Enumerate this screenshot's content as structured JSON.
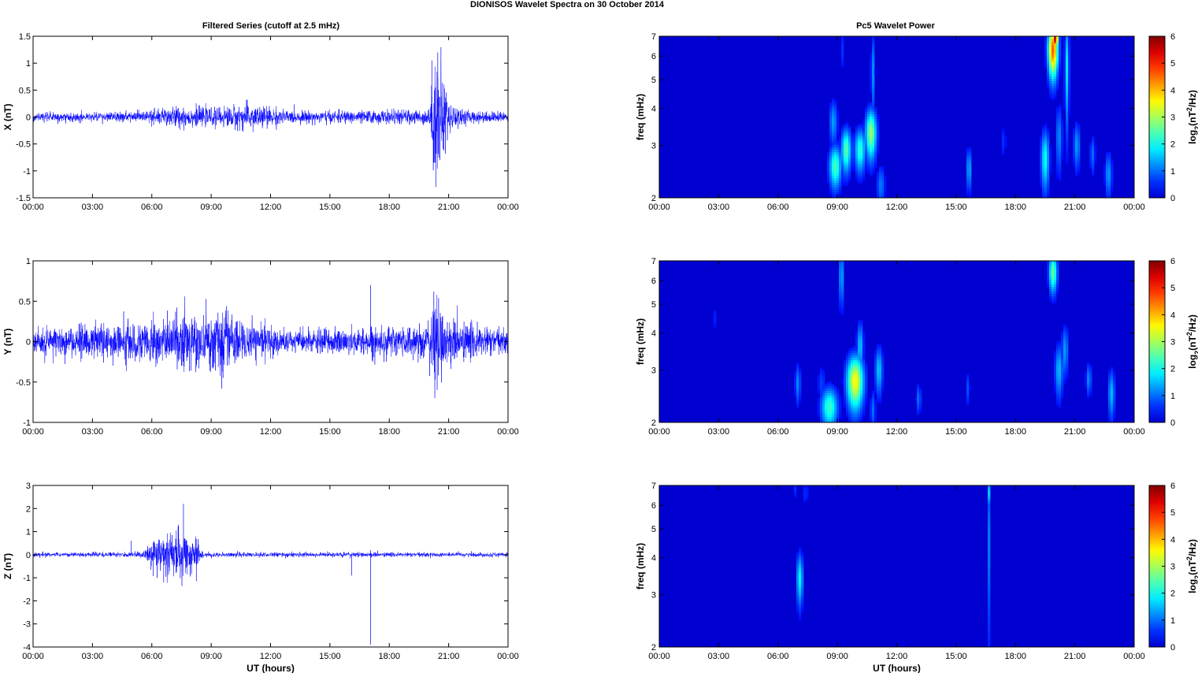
{
  "figure_title": "DIONISOS Wavelet Spectra on 30 October   2014",
  "left_title": "Filtered Series (cutoff at 2.5 mHz)",
  "right_title": "Pc5 Wavelet Power",
  "chart_data": [
    {
      "type": "line",
      "ylabel": "X (nT)",
      "xlabel": "",
      "xlim": [
        0,
        24
      ],
      "ylim": [
        -1.5,
        1.5
      ],
      "x_ticks": [
        "00:00",
        "03:00",
        "06:00",
        "09:00",
        "12:00",
        "15:00",
        "18:00",
        "21:00",
        "00:00"
      ],
      "y_ticks": [
        "-1.5",
        "-1",
        "-0.5",
        "0",
        "0.5",
        "1",
        "1.5"
      ],
      "series_color": "#0000ff",
      "noise_profile": [
        [
          0,
          0.07
        ],
        [
          5,
          0.08
        ],
        [
          7,
          0.18
        ],
        [
          9,
          0.14
        ],
        [
          11,
          0.22
        ],
        [
          13,
          0.1
        ],
        [
          16,
          0.1
        ],
        [
          20,
          0.12
        ],
        [
          20.3,
          0.9
        ],
        [
          20.5,
          1.2
        ],
        [
          21,
          0.25
        ],
        [
          22,
          0.1
        ],
        [
          24,
          0.08
        ]
      ],
      "spikes": [
        [
          20.15,
          1.05
        ],
        [
          20.35,
          -1.3
        ],
        [
          20.45,
          1.2
        ],
        [
          20.25,
          -0.85
        ]
      ]
    },
    {
      "type": "line",
      "ylabel": "Y (nT)",
      "xlabel": "",
      "xlim": [
        0,
        24
      ],
      "ylim": [
        -1,
        1
      ],
      "x_ticks": [
        "00:00",
        "03:00",
        "06:00",
        "09:00",
        "12:00",
        "15:00",
        "18:00",
        "21:00",
        "00:00"
      ],
      "y_ticks": [
        "-1",
        "-0.5",
        "0",
        "0.5",
        "1"
      ],
      "series_color": "#0000ff",
      "noise_profile": [
        [
          0,
          0.15
        ],
        [
          3,
          0.18
        ],
        [
          6,
          0.22
        ],
        [
          9.5,
          0.32
        ],
        [
          11,
          0.2
        ],
        [
          13,
          0.12
        ],
        [
          17,
          0.15
        ],
        [
          20,
          0.2
        ],
        [
          20.3,
          0.5
        ],
        [
          21,
          0.25
        ],
        [
          24,
          0.12
        ]
      ],
      "spikes": [
        [
          17.05,
          0.7
        ],
        [
          20.25,
          0.62
        ],
        [
          20.3,
          -0.7
        ],
        [
          9.6,
          -0.45
        ]
      ]
    },
    {
      "type": "line",
      "ylabel": "Z (nT)",
      "xlabel": "UT (hours)",
      "xlim": [
        0,
        24
      ],
      "ylim": [
        -4,
        3
      ],
      "x_ticks": [
        "00:00",
        "03:00",
        "06:00",
        "09:00",
        "12:00",
        "15:00",
        "18:00",
        "21:00",
        "00:00"
      ],
      "y_ticks": [
        "-4",
        "-3",
        "-2",
        "-1",
        "0",
        "1",
        "2",
        "3"
      ],
      "series_color": "#0000ff",
      "noise_profile": [
        [
          0,
          0.08
        ],
        [
          5.5,
          0.1
        ],
        [
          6.2,
          0.6
        ],
        [
          7.5,
          0.9
        ],
        [
          8.3,
          0.5
        ],
        [
          8.6,
          0.1
        ],
        [
          24,
          0.08
        ]
      ],
      "spikes": [
        [
          4.95,
          0.6
        ],
        [
          7.6,
          2.2
        ],
        [
          7.35,
          1.3
        ],
        [
          6.6,
          -1.2
        ],
        [
          8.25,
          -1.15
        ],
        [
          16.1,
          -0.9
        ],
        [
          17.05,
          -3.9
        ],
        [
          17.05,
          0.2
        ]
      ]
    },
    {
      "type": "heatmap",
      "ylabel": "freq (mHz)",
      "xlabel": "",
      "xlim": [
        0,
        24
      ],
      "ylim": [
        2,
        7
      ],
      "y_scale": "log",
      "x_ticks": [
        "00:00",
        "03:00",
        "06:00",
        "09:00",
        "12:00",
        "15:00",
        "18:00",
        "21:00",
        "00:00"
      ],
      "y_ticks": [
        "2",
        "3",
        "4",
        "5",
        "6",
        "7"
      ],
      "colorbar_label": "log2(nT2/Hz)",
      "colorbar_ticks": [
        "0",
        "1",
        "2",
        "3",
        "4",
        "5",
        "6"
      ],
      "clim": [
        0,
        6
      ],
      "blobs": [
        {
          "t": 8.9,
          "f": 2.55,
          "dt": 0.22,
          "df": 0.3,
          "v": 2.4
        },
        {
          "t": 8.8,
          "f": 3.6,
          "dt": 0.15,
          "df": 0.45,
          "v": 1.3
        },
        {
          "t": 9.45,
          "f": 2.9,
          "dt": 0.18,
          "df": 0.35,
          "v": 2.5
        },
        {
          "t": 10.15,
          "f": 2.9,
          "dt": 0.2,
          "df": 0.35,
          "v": 2.2
        },
        {
          "t": 10.7,
          "f": 3.3,
          "dt": 0.2,
          "df": 0.45,
          "v": 2.9
        },
        {
          "t": 10.8,
          "f": 5.3,
          "dt": 0.08,
          "df": 1.2,
          "v": 1.2
        },
        {
          "t": 9.3,
          "f": 6.3,
          "dt": 0.05,
          "df": 0.8,
          "v": 0.9
        },
        {
          "t": 11.2,
          "f": 2.2,
          "dt": 0.15,
          "df": 0.25,
          "v": 1.1
        },
        {
          "t": 15.65,
          "f": 2.5,
          "dt": 0.1,
          "df": 0.3,
          "v": 1.4
        },
        {
          "t": 19.5,
          "f": 2.7,
          "dt": 0.15,
          "df": 0.45,
          "v": 2.0
        },
        {
          "t": 19.9,
          "f": 6.3,
          "dt": 0.18,
          "df": 0.9,
          "v": 4.6
        },
        {
          "t": 20.0,
          "f": 6.9,
          "dt": 0.12,
          "df": 0.4,
          "v": 5.6
        },
        {
          "t": 20.2,
          "f": 3.2,
          "dt": 0.12,
          "df": 0.6,
          "v": 1.2
        },
        {
          "t": 20.6,
          "f": 5.5,
          "dt": 0.08,
          "df": 1.6,
          "v": 1.8
        },
        {
          "t": 21.1,
          "f": 3.0,
          "dt": 0.12,
          "df": 0.4,
          "v": 1.3
        },
        {
          "t": 21.9,
          "f": 2.8,
          "dt": 0.1,
          "df": 0.3,
          "v": 1.0
        },
        {
          "t": 22.7,
          "f": 2.4,
          "dt": 0.13,
          "df": 0.3,
          "v": 1.3
        },
        {
          "t": 17.4,
          "f": 3.1,
          "dt": 0.1,
          "df": 0.3,
          "v": 0.6
        }
      ]
    },
    {
      "type": "heatmap",
      "ylabel": "freq (mHz)",
      "xlabel": "",
      "xlim": [
        0,
        24
      ],
      "ylim": [
        2,
        7
      ],
      "y_scale": "log",
      "x_ticks": [
        "00:00",
        "03:00",
        "06:00",
        "09:00",
        "12:00",
        "15:00",
        "18:00",
        "21:00",
        "00:00"
      ],
      "y_ticks": [
        "2",
        "3",
        "4",
        "5",
        "6",
        "7"
      ],
      "colorbar_label": "log2(nT2/Hz)",
      "colorbar_ticks": [
        "0",
        "1",
        "2",
        "3",
        "4",
        "5",
        "6"
      ],
      "clim": [
        0,
        6
      ],
      "blobs": [
        {
          "t": 8.6,
          "f": 2.25,
          "dt": 0.3,
          "df": 0.25,
          "v": 2.3
        },
        {
          "t": 9.9,
          "f": 2.75,
          "dt": 0.3,
          "df": 0.4,
          "v": 3.6
        },
        {
          "t": 10.15,
          "f": 3.6,
          "dt": 0.12,
          "df": 0.5,
          "v": 1.6
        },
        {
          "t": 9.2,
          "f": 6.2,
          "dt": 0.08,
          "df": 1.0,
          "v": 1.5
        },
        {
          "t": 11.1,
          "f": 3.0,
          "dt": 0.14,
          "df": 0.4,
          "v": 1.6
        },
        {
          "t": 10.8,
          "f": 2.2,
          "dt": 0.1,
          "df": 0.25,
          "v": 1.0
        },
        {
          "t": 7.0,
          "f": 2.7,
          "dt": 0.1,
          "df": 0.3,
          "v": 1.2
        },
        {
          "t": 13.1,
          "f": 2.4,
          "dt": 0.1,
          "df": 0.2,
          "v": 1.0
        },
        {
          "t": 15.6,
          "f": 2.6,
          "dt": 0.08,
          "df": 0.25,
          "v": 0.8
        },
        {
          "t": 19.9,
          "f": 6.4,
          "dt": 0.15,
          "df": 0.7,
          "v": 2.6
        },
        {
          "t": 20.2,
          "f": 3.0,
          "dt": 0.15,
          "df": 0.45,
          "v": 1.5
        },
        {
          "t": 20.5,
          "f": 3.5,
          "dt": 0.12,
          "df": 0.5,
          "v": 1.3
        },
        {
          "t": 21.7,
          "f": 2.8,
          "dt": 0.1,
          "df": 0.25,
          "v": 1.2
        },
        {
          "t": 22.85,
          "f": 2.5,
          "dt": 0.12,
          "df": 0.35,
          "v": 1.5
        },
        {
          "t": 2.85,
          "f": 4.5,
          "dt": 0.07,
          "df": 0.35,
          "v": 0.6
        },
        {
          "t": 8.2,
          "f": 2.7,
          "dt": 0.15,
          "df": 0.3,
          "v": 0.7
        }
      ]
    },
    {
      "type": "heatmap",
      "ylabel": "freq (mHz)",
      "xlabel": "UT (hours)",
      "xlim": [
        0,
        24
      ],
      "ylim": [
        2,
        7
      ],
      "y_scale": "log",
      "x_ticks": [
        "00:00",
        "03:00",
        "06:00",
        "09:00",
        "12:00",
        "15:00",
        "18:00",
        "21:00",
        "00:00"
      ],
      "y_ticks": [
        "2",
        "3",
        "4",
        "5",
        "6",
        "7"
      ],
      "colorbar_label": "log2(nT2/Hz)",
      "colorbar_ticks": [
        "0",
        "1",
        "2",
        "3",
        "4",
        "5",
        "6"
      ],
      "clim": [
        0,
        6
      ],
      "blobs": [
        {
          "t": 7.1,
          "f": 3.4,
          "dt": 0.12,
          "df": 0.5,
          "v": 1.9
        },
        {
          "t": 7.4,
          "f": 6.6,
          "dt": 0.05,
          "df": 0.5,
          "v": 1.0
        },
        {
          "t": 6.9,
          "f": 6.8,
          "dt": 0.05,
          "df": 0.4,
          "v": 0.7
        },
        {
          "t": 16.65,
          "f": 4.5,
          "dt": 0.05,
          "df": 2.0,
          "v": 1.1
        },
        {
          "t": 16.65,
          "f": 6.6,
          "dt": 0.05,
          "df": 0.5,
          "v": 1.6
        }
      ]
    }
  ]
}
